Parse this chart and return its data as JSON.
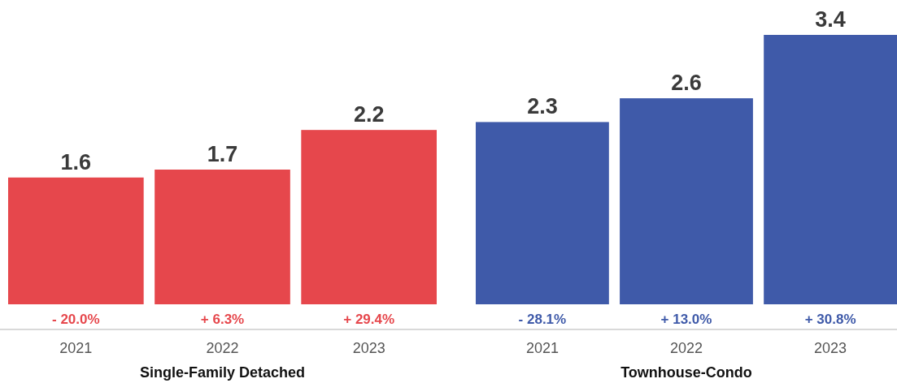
{
  "chart_data": [
    {
      "type": "bar",
      "categories": [
        "2021",
        "2022",
        "2023"
      ],
      "values": [
        1.6,
        1.7,
        2.2
      ],
      "color": "#e6474c",
      "data_labels": true,
      "tick_labels": "x",
      "xlabel": "Single-Family Detached",
      "annotations": [
        "- 20.0%",
        "+ 6.3%",
        "+ 29.4%"
      ]
    },
    {
      "type": "bar",
      "categories": [
        "2021",
        "2022",
        "2023"
      ],
      "values": [
        2.3,
        2.6,
        3.4
      ],
      "color": "#3f5aa9",
      "data_labels": true,
      "tick_labels": "x",
      "xlabel": "Townhouse-Condo",
      "annotations": [
        "- 28.1%",
        "+ 13.0%",
        "+ 30.8%"
      ]
    }
  ]
}
